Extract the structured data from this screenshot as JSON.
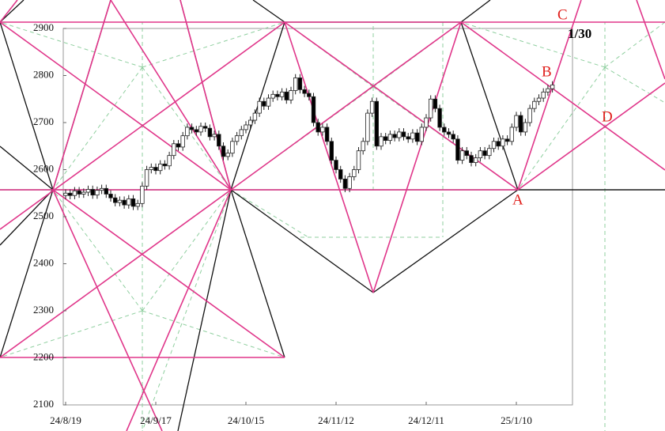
{
  "chart_data": {
    "type": "candlestick",
    "categories": [
      "24/8/19",
      null,
      null,
      null,
      null,
      null,
      null,
      null,
      null,
      null,
      null,
      null,
      null,
      null,
      null,
      null,
      null,
      null,
      null,
      null,
      "24/9/17",
      null,
      null,
      null,
      null,
      null,
      null,
      null,
      null,
      null,
      null,
      null,
      null,
      null,
      null,
      null,
      null,
      null,
      null,
      null,
      "24/10/15",
      null,
      null,
      null,
      null,
      null,
      null,
      null,
      null,
      null,
      null,
      null,
      null,
      null,
      null,
      null,
      null,
      null,
      null,
      null,
      "24/11/12",
      null,
      null,
      null,
      null,
      null,
      null,
      null,
      null,
      null,
      null,
      null,
      null,
      null,
      null,
      null,
      null,
      null,
      null,
      null,
      "24/12/11",
      null,
      null,
      null,
      null,
      null,
      null,
      null,
      null,
      null,
      null,
      null,
      null,
      null,
      null,
      null,
      null,
      null,
      null,
      null,
      "25/1/10",
      null,
      null,
      null,
      null,
      null,
      null,
      null,
      null
    ],
    "open": [
      2545,
      2550,
      2545,
      2555,
      2548,
      2552,
      2558,
      2546,
      2556,
      2560,
      2548,
      2540,
      2530,
      2535,
      2525,
      2538,
      2522,
      2528,
      2565,
      2600,
      2605,
      2598,
      2612,
      2608,
      2630,
      2655,
      2648,
      2672,
      2690,
      2685,
      2680,
      2692,
      2688,
      2670,
      2675,
      2650,
      2628,
      2635,
      2660,
      2672,
      2685,
      2695,
      2705,
      2720,
      2745,
      2735,
      2752,
      2760,
      2755,
      2765,
      2748,
      2768,
      2795,
      2770,
      2762,
      2755,
      2700,
      2680,
      2690,
      2660,
      2620,
      2600,
      2580,
      2560,
      2585,
      2600,
      2640,
      2660,
      2720,
      2745,
      2650,
      2670,
      2662,
      2675,
      2668,
      2680,
      2670,
      2665,
      2678,
      2660,
      2690,
      2710,
      2750,
      2730,
      2690,
      2680,
      2675,
      2665,
      2620,
      2640,
      2630,
      2615,
      2625,
      2640,
      2630,
      2645,
      2660,
      2650,
      2665,
      2660,
      2690,
      2715,
      2680,
      2700,
      2730,
      2745,
      2752,
      2765,
      2772
    ],
    "high": [
      2558,
      2558,
      2563,
      2563,
      2560,
      2566,
      2566,
      2564,
      2568,
      2568,
      2556,
      2548,
      2543,
      2543,
      2546,
      2546,
      2536,
      2573,
      2608,
      2613,
      2613,
      2620,
      2620,
      2638,
      2663,
      2663,
      2680,
      2698,
      2698,
      2693,
      2700,
      2700,
      2696,
      2683,
      2683,
      2658,
      2643,
      2668,
      2680,
      2693,
      2703,
      2713,
      2728,
      2753,
      2753,
      2760,
      2768,
      2768,
      2773,
      2773,
      2776,
      2803,
      2803,
      2778,
      2770,
      2763,
      2708,
      2698,
      2698,
      2668,
      2628,
      2608,
      2588,
      2593,
      2608,
      2648,
      2668,
      2728,
      2753,
      2753,
      2678,
      2678,
      2683,
      2683,
      2688,
      2688,
      2678,
      2686,
      2686,
      2698,
      2718,
      2758,
      2758,
      2738,
      2698,
      2688,
      2683,
      2673,
      2648,
      2648,
      2638,
      2633,
      2648,
      2648,
      2653,
      2668,
      2668,
      2673,
      2673,
      2698,
      2723,
      2723,
      2708,
      2738,
      2753,
      2760,
      2773,
      2780,
      2788
    ],
    "low": [
      2537,
      2537,
      2537,
      2540,
      2540,
      2544,
      2538,
      2538,
      2548,
      2540,
      2532,
      2522,
      2522,
      2517,
      2517,
      2514,
      2514,
      2520,
      2557,
      2592,
      2590,
      2590,
      2600,
      2600,
      2622,
      2640,
      2640,
      2664,
      2677,
      2672,
      2672,
      2680,
      2662,
      2662,
      2642,
      2620,
      2620,
      2627,
      2652,
      2664,
      2677,
      2687,
      2697,
      2712,
      2727,
      2727,
      2744,
      2747,
      2747,
      2740,
      2740,
      2760,
      2762,
      2754,
      2747,
      2692,
      2672,
      2672,
      2652,
      2612,
      2592,
      2572,
      2552,
      2552,
      2577,
      2592,
      2632,
      2652,
      2712,
      2642,
      2642,
      2654,
      2654,
      2660,
      2660,
      2662,
      2657,
      2657,
      2652,
      2652,
      2682,
      2702,
      2722,
      2682,
      2672,
      2667,
      2657,
      2612,
      2612,
      2622,
      2607,
      2607,
      2617,
      2622,
      2622,
      2637,
      2642,
      2642,
      2652,
      2652,
      2682,
      2672,
      2672,
      2692,
      2722,
      2737,
      2744,
      2757,
      2764
    ],
    "close": [
      2550,
      2545,
      2555,
      2548,
      2552,
      2558,
      2546,
      2556,
      2560,
      2548,
      2540,
      2530,
      2535,
      2525,
      2538,
      2522,
      2528,
      2565,
      2600,
      2605,
      2598,
      2612,
      2608,
      2630,
      2655,
      2648,
      2672,
      2690,
      2685,
      2680,
      2692,
      2688,
      2670,
      2675,
      2650,
      2628,
      2635,
      2660,
      2672,
      2685,
      2695,
      2705,
      2720,
      2745,
      2735,
      2752,
      2760,
      2755,
      2765,
      2748,
      2768,
      2795,
      2770,
      2762,
      2755,
      2700,
      2680,
      2690,
      2660,
      2620,
      2600,
      2580,
      2560,
      2585,
      2600,
      2640,
      2660,
      2720,
      2745,
      2650,
      2670,
      2662,
      2675,
      2668,
      2680,
      2670,
      2665,
      2678,
      2660,
      2690,
      2710,
      2750,
      2730,
      2690,
      2680,
      2675,
      2665,
      2620,
      2640,
      2630,
      2615,
      2625,
      2640,
      2630,
      2645,
      2660,
      2650,
      2665,
      2660,
      2690,
      2715,
      2680,
      2700,
      2730,
      2745,
      2752,
      2765,
      2772,
      2780
    ],
    "ylim": [
      2100,
      2900
    ],
    "yticks": [
      2100,
      2200,
      2300,
      2400,
      2500,
      2600,
      2700,
      2800,
      2900
    ],
    "annotations": [
      "A",
      "B",
      "C",
      "D",
      "1/30"
    ]
  }
}
